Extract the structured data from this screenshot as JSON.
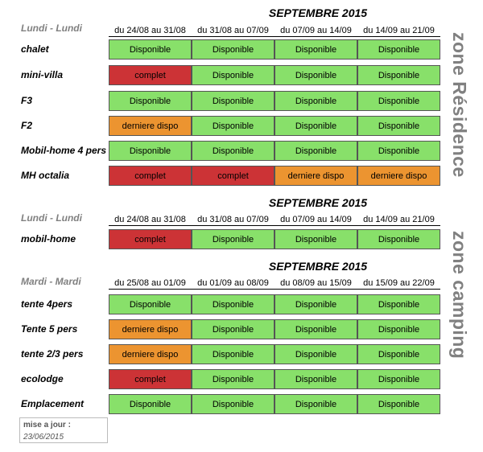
{
  "sections": [
    {
      "month": "SEPTEMBRE 2015",
      "cycle": "Lundi - Lundi",
      "periods": [
        "du 24/08 au 31/08",
        "du 31/08 au 07/09",
        "du 07/09 au 14/09",
        "du 14/09 au 21/09"
      ],
      "rows": [
        {
          "name": "chalet",
          "cells": [
            "Disponible",
            "Disponible",
            "Disponible",
            "Disponible"
          ]
        },
        {
          "name": "mini-villa",
          "cells": [
            "complet",
            "Disponible",
            "Disponible",
            "Disponible"
          ]
        },
        {
          "name": "F3",
          "cells": [
            "Disponible",
            "Disponible",
            "Disponible",
            "Disponible"
          ]
        },
        {
          "name": "F2",
          "cells": [
            "derniere dispo",
            "Disponible",
            "Disponible",
            "Disponible"
          ]
        },
        {
          "name": "Mobil-home 4 pers",
          "cells": [
            "Disponible",
            "Disponible",
            "Disponible",
            "Disponible"
          ]
        },
        {
          "name": "MH octalia",
          "cells": [
            "complet",
            "complet",
            "derniere dispo",
            "derniere dispo"
          ]
        }
      ]
    },
    {
      "month": "SEPTEMBRE 2015",
      "cycle": "Lundi - Lundi",
      "periods": [
        "du 24/08 au 31/08",
        "du 31/08 au 07/09",
        "du 07/09 au 14/09",
        "du 14/09 au 21/09"
      ],
      "rows": [
        {
          "name": "mobil-home",
          "cells": [
            "complet",
            "Disponible",
            "Disponible",
            "Disponible"
          ]
        }
      ]
    },
    {
      "month": "SEPTEMBRE 2015",
      "cycle": "Mardi - Mardi",
      "periods": [
        "du 25/08 au 01/09",
        "du 01/09 au 08/09",
        "du 08/09 au 15/09",
        "du 15/09 au 22/09"
      ],
      "rows": [
        {
          "name": "tente 4pers",
          "cells": [
            "Disponible",
            "Disponible",
            "Disponible",
            "Disponible"
          ]
        },
        {
          "name": "Tente 5 pers",
          "cells": [
            "derniere dispo",
            "Disponible",
            "Disponible",
            "Disponible"
          ]
        },
        {
          "name": "tente 2/3 pers",
          "cells": [
            "derniere dispo",
            "Disponible",
            "Disponible",
            "Disponible"
          ]
        },
        {
          "name": "ecolodge",
          "cells": [
            "complet",
            "Disponible",
            "Disponible",
            "Disponible"
          ]
        },
        {
          "name": "Emplacement",
          "cells": [
            "Disponible",
            "Disponible",
            "Disponible",
            "Disponible"
          ]
        }
      ]
    }
  ],
  "zones": [
    "zone Résidence",
    "zone camping"
  ],
  "update": {
    "label": "mise a jour :",
    "date": "23/06/2015"
  },
  "colors": {
    "Disponible": "#88e06a",
    "complet": "#cc3336",
    "derniere dispo": "#ec9430"
  }
}
